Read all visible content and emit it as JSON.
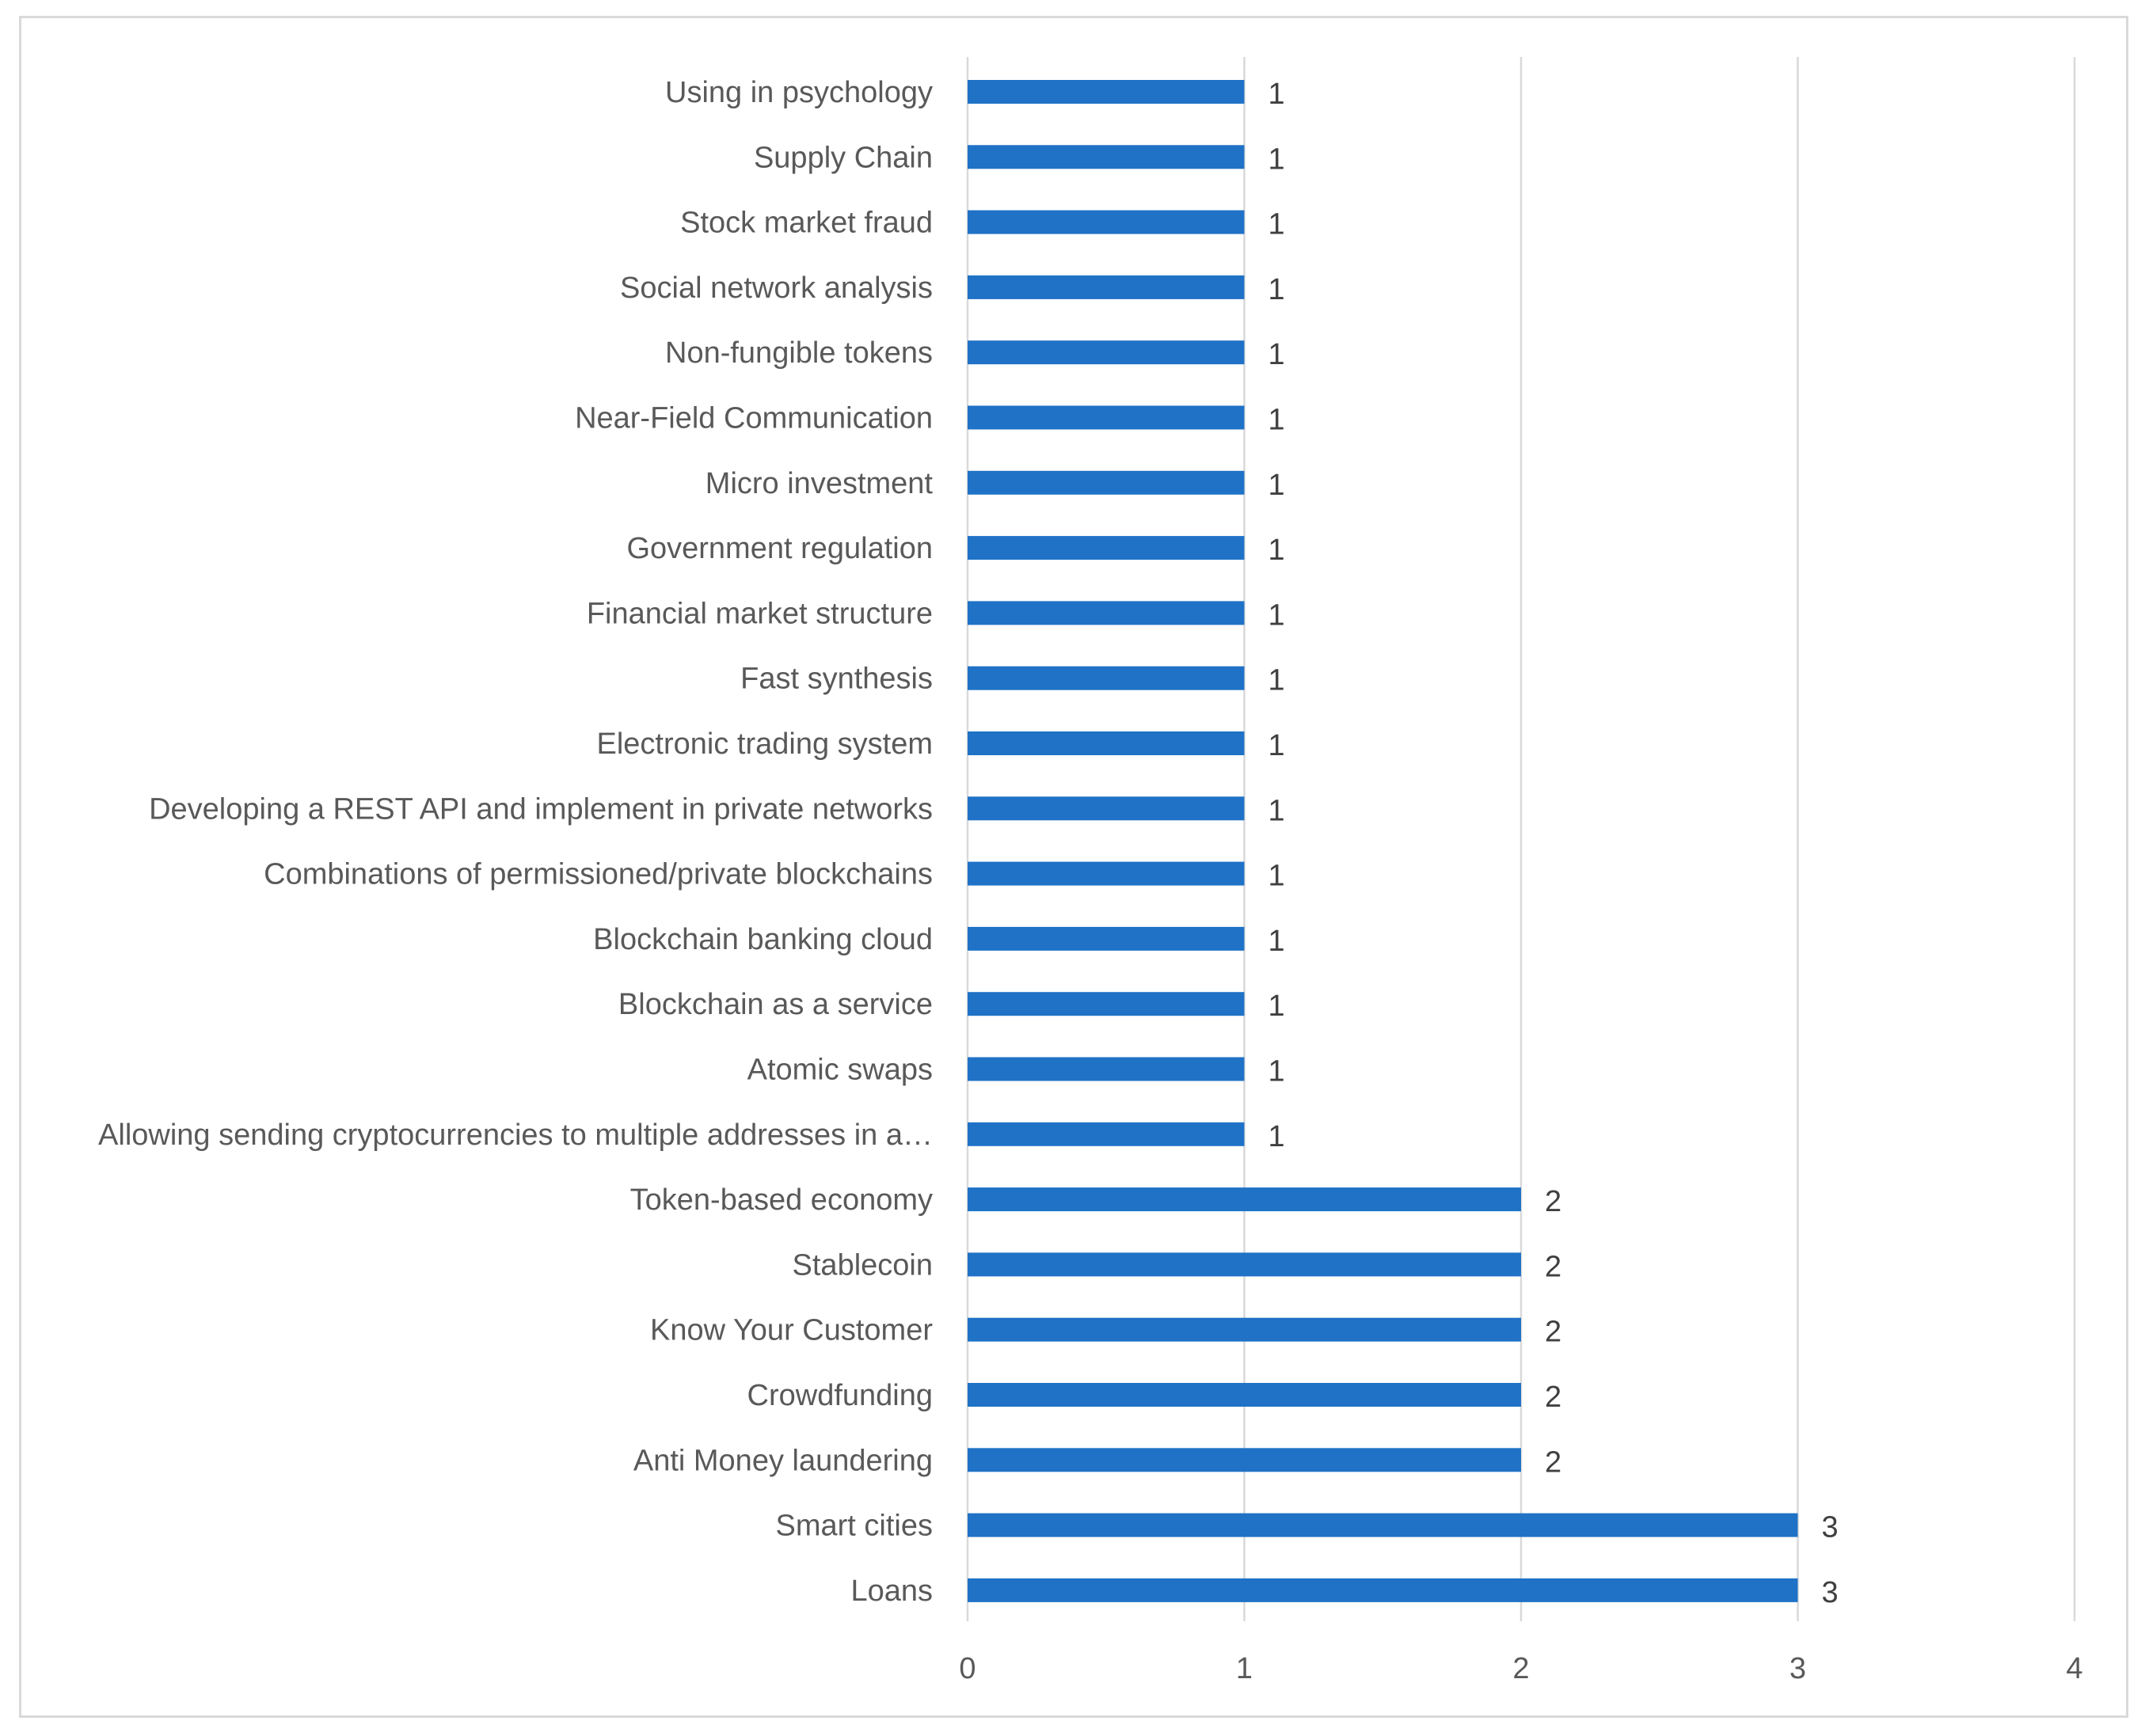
{
  "chart_data": {
    "type": "bar",
    "orientation": "horizontal",
    "title": "",
    "xlabel": "",
    "ylabel": "",
    "xlim": [
      0,
      4
    ],
    "xticks": [
      "0",
      "1",
      "2",
      "3",
      "4"
    ],
    "grid": true,
    "legend": "none",
    "bar_color": "#1f72c6",
    "grid_color": "#d9d9d9",
    "categories": [
      "Using in psychology",
      "Supply Chain",
      "Stock market fraud",
      "Social network analysis",
      "Non-fungible tokens",
      "Near-Field Communication",
      "Micro investment",
      "Government regulation",
      "Financial market structure",
      "Fast synthesis",
      "Electronic trading system",
      "Developing a REST API and implement in private networks",
      "Combinations of permissioned/private blockchains",
      "Blockchain banking cloud",
      "Blockchain as a service",
      "Atomic swaps",
      "Allowing sending cryptocurrencies to multiple addresses in a…",
      "Token-based economy",
      "Stablecoin",
      "Know Your Customer",
      "Crowdfunding",
      "Anti Money laundering",
      "Smart cities",
      "Loans"
    ],
    "values": [
      1,
      1,
      1,
      1,
      1,
      1,
      1,
      1,
      1,
      1,
      1,
      1,
      1,
      1,
      1,
      1,
      1,
      2,
      2,
      2,
      2,
      2,
      3,
      3
    ],
    "value_labels": [
      "1",
      "1",
      "1",
      "1",
      "1",
      "1",
      "1",
      "1",
      "1",
      "1",
      "1",
      "1",
      "1",
      "1",
      "1",
      "1",
      "1",
      "2",
      "2",
      "2",
      "2",
      "2",
      "3",
      "3"
    ]
  }
}
